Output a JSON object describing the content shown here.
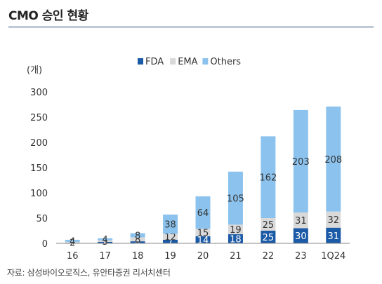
{
  "title": "CMO 승인 현황",
  "source": "자료: 삼성바이오로직스, 유안타증권 리서치센터",
  "chart_data": {
    "type": "bar",
    "stacked": true,
    "unit_label": "(개)",
    "categories": [
      "16",
      "17",
      "18",
      "19",
      "20",
      "21",
      "22",
      "23",
      "1Q24"
    ],
    "series": [
      {
        "name": "FDA",
        "color": "#1b5aa6",
        "values": [
          1,
          3,
          4,
          7,
          14,
          18,
          25,
          30,
          31
        ],
        "labels": [
          "1",
          "3",
          "4",
          "7",
          "14",
          "18",
          "25",
          "30",
          "31"
        ],
        "label_color": "#ffffff"
      },
      {
        "name": "EMA",
        "color": "#d9d9d9",
        "values": [
          2,
          3,
          8,
          12,
          15,
          19,
          25,
          31,
          32
        ],
        "labels": [
          "2",
          "3",
          "8",
          "12",
          "15",
          "19",
          "25",
          "31",
          "32"
        ],
        "label_color": "#333333"
      },
      {
        "name": "Others",
        "color": "#8cc3ee",
        "values": [
          4,
          4,
          8,
          38,
          64,
          105,
          162,
          203,
          208
        ],
        "labels": [
          "4",
          "4",
          "8",
          "38",
          "64",
          "105",
          "162",
          "203",
          "208"
        ],
        "label_color": "#333333"
      }
    ],
    "ylim": [
      0,
      300
    ],
    "yticks": [
      0,
      50,
      100,
      150,
      200,
      250,
      300
    ],
    "legend_position": "top"
  }
}
